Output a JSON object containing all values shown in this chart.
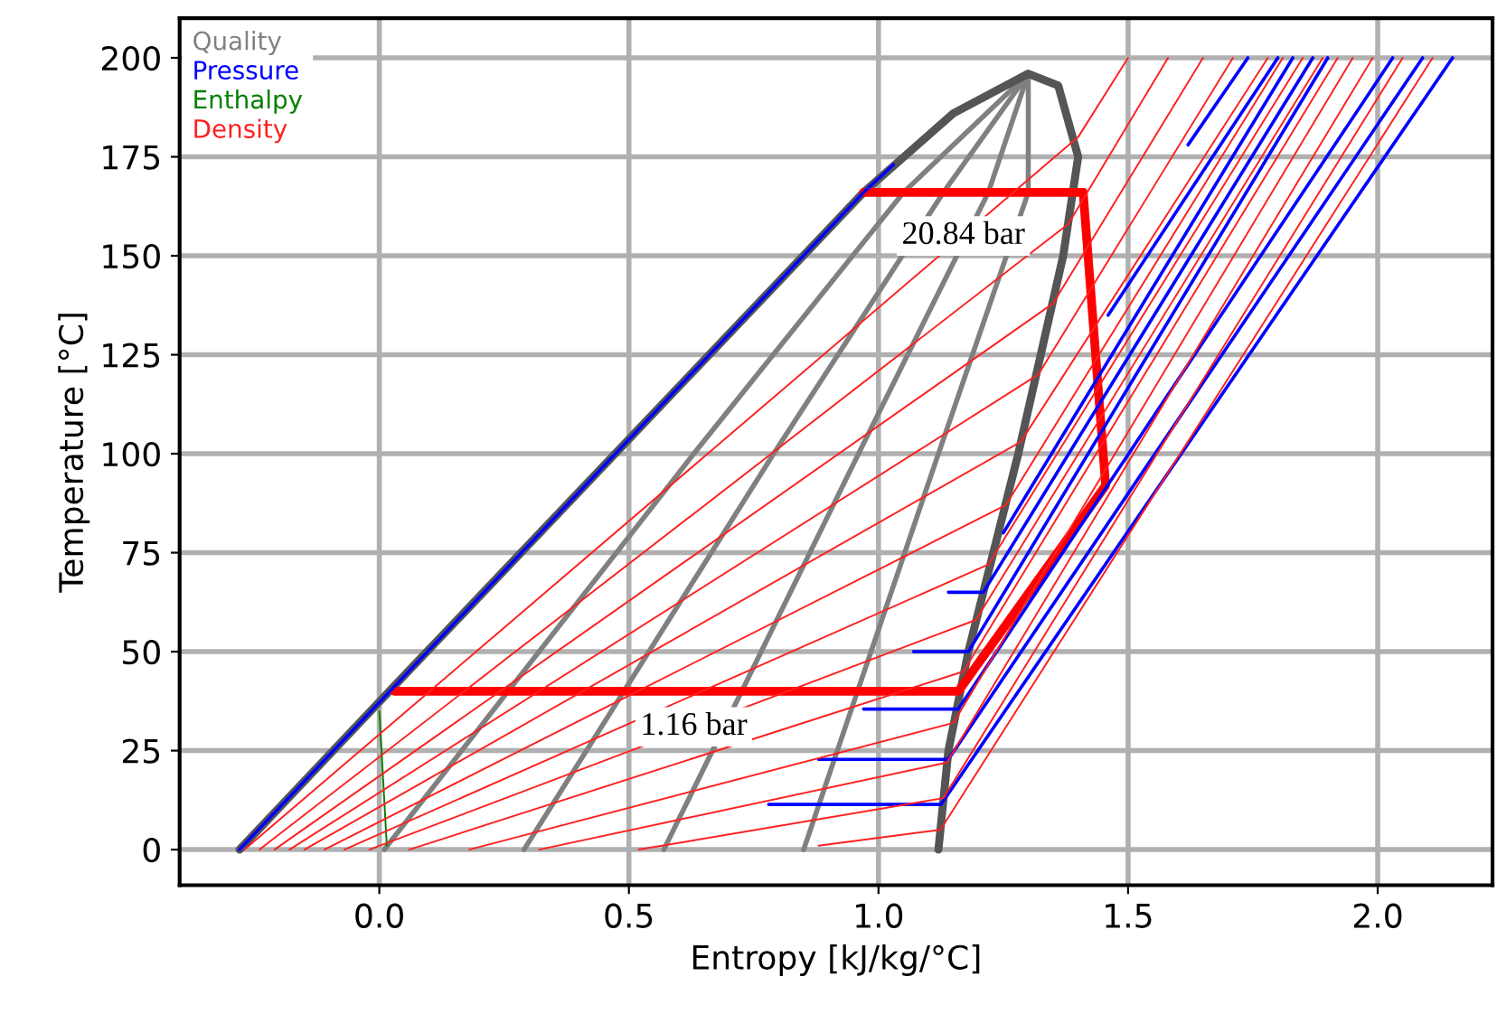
{
  "chart_data": {
    "type": "line",
    "xlabel": "Entropy [kJ/kg/°C]",
    "ylabel": "Temperature [°C]",
    "xlim": [
      -0.4,
      2.23
    ],
    "ylim": [
      -9,
      210
    ],
    "xticks": [
      {
        "value": 0,
        "label": "0.0"
      },
      {
        "value": 0.5,
        "label": "0.5"
      },
      {
        "value": 1,
        "label": "1.0"
      },
      {
        "value": 1.5,
        "label": "1.5"
      },
      {
        "value": 2,
        "label": "2.0"
      }
    ],
    "yticks": [
      0,
      25,
      50,
      75,
      100,
      125,
      150,
      175,
      200
    ],
    "grid": true,
    "legend": "top left",
    "marker": "none",
    "line_style": "solid",
    "annotations": [
      {
        "text": "20.84 bar",
        "x": 1.17,
        "y": 155
      },
      {
        "text": "1.16 bar",
        "x": 0.63,
        "y": 31
      }
    ],
    "series": [
      {
        "name": "Quality",
        "color": "#808080",
        "x": [
          0.01,
          0.63,
          1.05,
          1.3
        ],
        "values": [
          0,
          100,
          166,
          196
        ]
      },
      {
        "color": "#808080",
        "x": [
          0.29,
          0.79,
          1.13,
          1.3
        ],
        "values": [
          0,
          100,
          166,
          196
        ]
      },
      {
        "color": "#808080",
        "x": [
          0.57,
          0.96,
          1.22,
          1.3
        ],
        "values": [
          0,
          100,
          166,
          196
        ]
      },
      {
        "color": "#808080",
        "x": [
          0.85,
          1.12,
          1.3,
          1.3
        ],
        "values": [
          0,
          100,
          166,
          196
        ]
      },
      {
        "name": "Pressure",
        "color": "#0000ff",
        "x": [
          -0.28,
          0.97,
          1.03
        ],
        "values": [
          0,
          166,
          173
        ]
      },
      {
        "color": "#0000ff",
        "x": [
          0.78,
          1.125,
          2.15
        ],
        "values": [
          11.4,
          11.4,
          200
        ]
      },
      {
        "color": "#0000ff",
        "x": [
          0.88,
          1.14,
          2.09
        ],
        "values": [
          22.8,
          22.8,
          200
        ]
      },
      {
        "color": "#0000ff",
        "x": [
          0.97,
          1.16,
          2.03
        ],
        "values": [
          35.5,
          35.5,
          200
        ]
      },
      {
        "color": "#0000ff",
        "x": [
          1.07,
          1.18,
          1.9
        ],
        "values": [
          50,
          50,
          200
        ]
      },
      {
        "color": "#0000ff",
        "x": [
          1.14,
          1.21,
          1.87
        ],
        "values": [
          65,
          65,
          200
        ]
      },
      {
        "color": "#0000ff",
        "x": [
          1.25,
          1.83
        ],
        "values": [
          80,
          200
        ]
      },
      {
        "color": "#0000ff",
        "x": [
          1.46,
          1.8
        ],
        "values": [
          135,
          200
        ]
      },
      {
        "color": "#0000ff",
        "x": [
          1.62,
          1.74
        ],
        "values": [
          178,
          200
        ]
      },
      {
        "name": "Enthalpy",
        "color": "#008000",
        "x": [
          0.0,
          0.015
        ],
        "values": [
          35,
          1
        ]
      },
      {
        "name": "Density",
        "color": "#ff2020",
        "x": [
          -0.27,
          1.4,
          1.5
        ],
        "values": [
          0,
          180,
          200
        ]
      },
      {
        "color": "#ff2020",
        "x": [
          -0.24,
          1.38,
          1.58
        ],
        "values": [
          0,
          158,
          200
        ]
      },
      {
        "color": "#ff2020",
        "x": [
          -0.21,
          1.35,
          1.65
        ],
        "values": [
          0,
          138,
          200
        ]
      },
      {
        "color": "#ff2020",
        "x": [
          -0.18,
          1.32,
          1.71
        ],
        "values": [
          0,
          120,
          200
        ]
      },
      {
        "color": "#ff2020",
        "x": [
          -0.15,
          1.285,
          1.78
        ],
        "values": [
          0,
          103,
          200
        ]
      },
      {
        "color": "#ff2020",
        "x": [
          -0.11,
          1.255,
          1.81
        ],
        "values": [
          0,
          87,
          200
        ]
      },
      {
        "color": "#ff2020",
        "x": [
          -0.07,
          1.22,
          1.85
        ],
        "values": [
          0,
          72,
          200
        ]
      },
      {
        "color": "#ff2020",
        "x": [
          -0.02,
          1.195,
          1.89
        ],
        "values": [
          0,
          58,
          200
        ]
      },
      {
        "color": "#ff2020",
        "x": [
          0.06,
          1.17,
          1.92
        ],
        "values": [
          0,
          45,
          200
        ]
      },
      {
        "color": "#ff2020",
        "x": [
          0.18,
          1.15,
          1.95
        ],
        "values": [
          0,
          32,
          200
        ]
      },
      {
        "color": "#ff2020",
        "x": [
          0.32,
          1.137,
          1.99
        ],
        "values": [
          0,
          22,
          200
        ]
      },
      {
        "color": "#ff2020",
        "x": [
          0.52,
          1.13,
          2.05
        ],
        "values": [
          0,
          13,
          200
        ]
      },
      {
        "color": "#ff2020",
        "x": [
          0.88,
          1.124,
          2.11
        ],
        "values": [
          1,
          5,
          200
        ]
      },
      {
        "color": "#555555",
        "x": [
          -0.28,
          0.02,
          0.97,
          1.15,
          1.3,
          1.36,
          1.4,
          1.37,
          1.28,
          1.18,
          1.14,
          1.12
        ],
        "values": [
          0,
          40,
          166,
          186,
          196,
          193,
          175,
          150,
          100,
          50,
          25,
          0
        ]
      },
      {
        "color": "#ff0000",
        "x": [
          0.97,
          1.41,
          1.455,
          1.16,
          0.03
        ],
        "values": [
          166,
          166,
          92,
          40,
          40
        ]
      }
    ]
  }
}
